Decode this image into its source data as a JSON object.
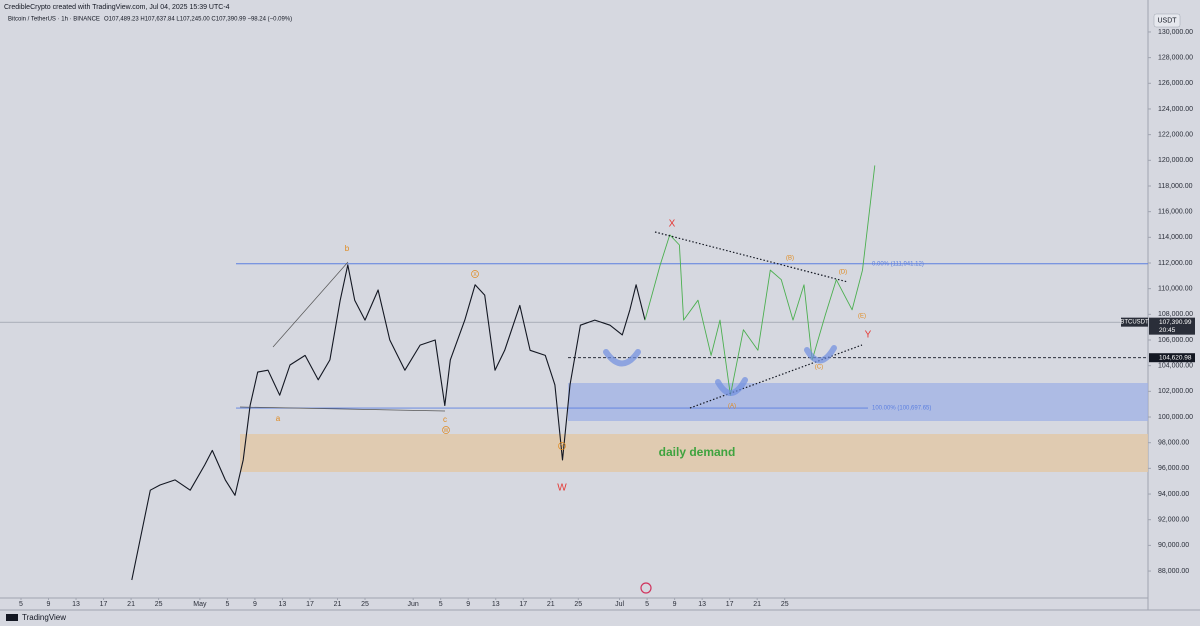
{
  "chart_data": {
    "type": "line",
    "header": "CredibleCrypto created with TradingView.com, Jul 04, 2025 15:39 UTC-4",
    "symbol_line": "Bitcoin / TetherUS · 1h · BINANCE",
    "ohlc": "O107,489.23 H107,637.84 L107,245.00 C107,390.99 −98.24 (−0.09%)",
    "currency": "USDT",
    "footer": "TradingView",
    "xlim": [
      1.95,
      168.8
    ],
    "ylim": [
      85900,
      132490
    ],
    "xticks": [
      {
        "value": 5,
        "label": "5"
      },
      {
        "value": 9,
        "label": "9"
      },
      {
        "value": 13,
        "label": "13"
      },
      {
        "value": 17,
        "label": "17"
      },
      {
        "value": 21,
        "label": "21"
      },
      {
        "value": 25,
        "label": "25"
      },
      {
        "value": 31,
        "label": "May"
      },
      {
        "value": 35,
        "label": "5"
      },
      {
        "value": 39,
        "label": "9"
      },
      {
        "value": 43,
        "label": "13"
      },
      {
        "value": 47,
        "label": "17"
      },
      {
        "value": 51,
        "label": "21"
      },
      {
        "value": 55,
        "label": "25"
      },
      {
        "value": 62,
        "label": "Jun"
      },
      {
        "value": 66,
        "label": "5"
      },
      {
        "value": 70,
        "label": "9"
      },
      {
        "value": 74,
        "label": "13"
      },
      {
        "value": 78,
        "label": "17"
      },
      {
        "value": 82,
        "label": "21"
      },
      {
        "value": 86,
        "label": "25"
      },
      {
        "value": 92,
        "label": "Jul"
      },
      {
        "value": 96,
        "label": "5"
      },
      {
        "value": 100,
        "label": "9"
      },
      {
        "value": 104,
        "label": "13"
      },
      {
        "value": 108,
        "label": "17"
      },
      {
        "value": 112,
        "label": "21"
      },
      {
        "value": 116,
        "label": "25"
      }
    ],
    "yticks": [
      {
        "value": 88000,
        "label": "88,000.00"
      },
      {
        "value": 90000,
        "label": "90,000.00"
      },
      {
        "value": 92000,
        "label": "92,000.00"
      },
      {
        "value": 94000,
        "label": "94,000.00"
      },
      {
        "value": 96000,
        "label": "96,000.00"
      },
      {
        "value": 98000,
        "label": "98,000.00"
      },
      {
        "value": 100000,
        "label": "100,000.00"
      },
      {
        "value": 102000,
        "label": "102,000.00"
      },
      {
        "value": 104000,
        "label": "104,000.00"
      },
      {
        "value": 106000,
        "label": "106,000.00"
      },
      {
        "value": 108000,
        "label": "108,000.00"
      },
      {
        "value": 110000,
        "label": "110,000.00"
      },
      {
        "value": 112000,
        "label": "112,000.00"
      },
      {
        "value": 114000,
        "label": "114,000.00"
      },
      {
        "value": 116000,
        "label": "116,000.00"
      },
      {
        "value": 118000,
        "label": "118,000.00"
      },
      {
        "value": 120000,
        "label": "120,000.00"
      },
      {
        "value": 122000,
        "label": "122,000.00"
      },
      {
        "value": 124000,
        "label": "124,000.00"
      },
      {
        "value": 126000,
        "label": "126,000.00"
      },
      {
        "value": 128000,
        "label": "128,000.00"
      },
      {
        "value": 130000,
        "label": "130,000.00"
      }
    ],
    "series": [
      {
        "name": "BTCUSDT",
        "color": "#131722",
        "x": [
          21.1,
          22.3,
          23.8,
          25.2,
          27.4,
          29.6,
          31.7,
          32.8,
          34.7,
          36.1,
          37.3,
          38.3,
          39.4,
          40.9,
          42.6,
          44.1,
          46.3,
          48.2,
          49.9,
          51.4,
          52.5,
          53.5,
          55.0,
          56.9,
          58.6,
          60.8,
          63.0,
          65.2,
          66.6,
          67.4,
          69.5,
          71.0,
          72.4,
          73.9,
          75.3,
          77.5,
          79.0,
          81.2,
          82.6,
          83.7,
          84.8,
          86.3,
          88.4,
          90.6,
          92.4,
          93.5,
          94.4,
          95.7
        ],
        "values": [
          87300,
          90400,
          94300,
          94700,
          95100,
          94300,
          96260,
          97400,
          95100,
          93900,
          96650,
          100900,
          103500,
          103650,
          101700,
          104050,
          104800,
          102900,
          104450,
          109100,
          111850,
          109100,
          107550,
          109900,
          106000,
          103650,
          105600,
          106000,
          100900,
          104450,
          107550,
          110300,
          109500,
          103650,
          105200,
          108700,
          105200,
          104800,
          102500,
          96650,
          102500,
          107150,
          107550,
          107150,
          106400,
          108350,
          110300,
          107550
        ]
      }
    ],
    "projection": {
      "color": "#4caf50",
      "x": [
        95.7,
        96.9,
        97.9,
        99.3,
        100.7,
        101.3,
        103.4,
        105.3,
        106.6,
        108.1,
        110.0,
        112.1,
        113.9,
        115.5,
        117.2,
        118.8,
        120.0,
        121.9,
        123.5,
        125.8,
        127.3,
        129.1
      ],
      "values": [
        107550,
        109900,
        111850,
        114200,
        113400,
        107550,
        109100,
        104800,
        107550,
        101700,
        106800,
        105200,
        111450,
        110700,
        107550,
        110300,
        104450,
        107950,
        110700,
        108350,
        111450,
        119600
      ]
    },
    "levels": [
      {
        "label": "0.00% (111,941.12)",
        "value": 111941.12,
        "color": "#5b7fe0"
      },
      {
        "label": "100.00% (100,697.65)",
        "value": 100697.65,
        "color": "#5b7fe0"
      }
    ],
    "price_tags": [
      {
        "label": "107,390.99",
        "value": 107390.99,
        "name": "BTCUSDT",
        "time": "20:45"
      },
      {
        "label": "104,620.98",
        "value": 104620.98
      }
    ],
    "annotations": {
      "zone": "daily demand",
      "b": "b",
      "a": "a",
      "c": "c",
      "w_red": "W",
      "x_red": "X",
      "y_red": "Y",
      "w_small": "W",
      "x_small": "X",
      "y_small": "Y",
      "A": "(A)",
      "B": "(B)",
      "C": "(C)",
      "D": "(D)",
      "E": "(E)"
    }
  }
}
